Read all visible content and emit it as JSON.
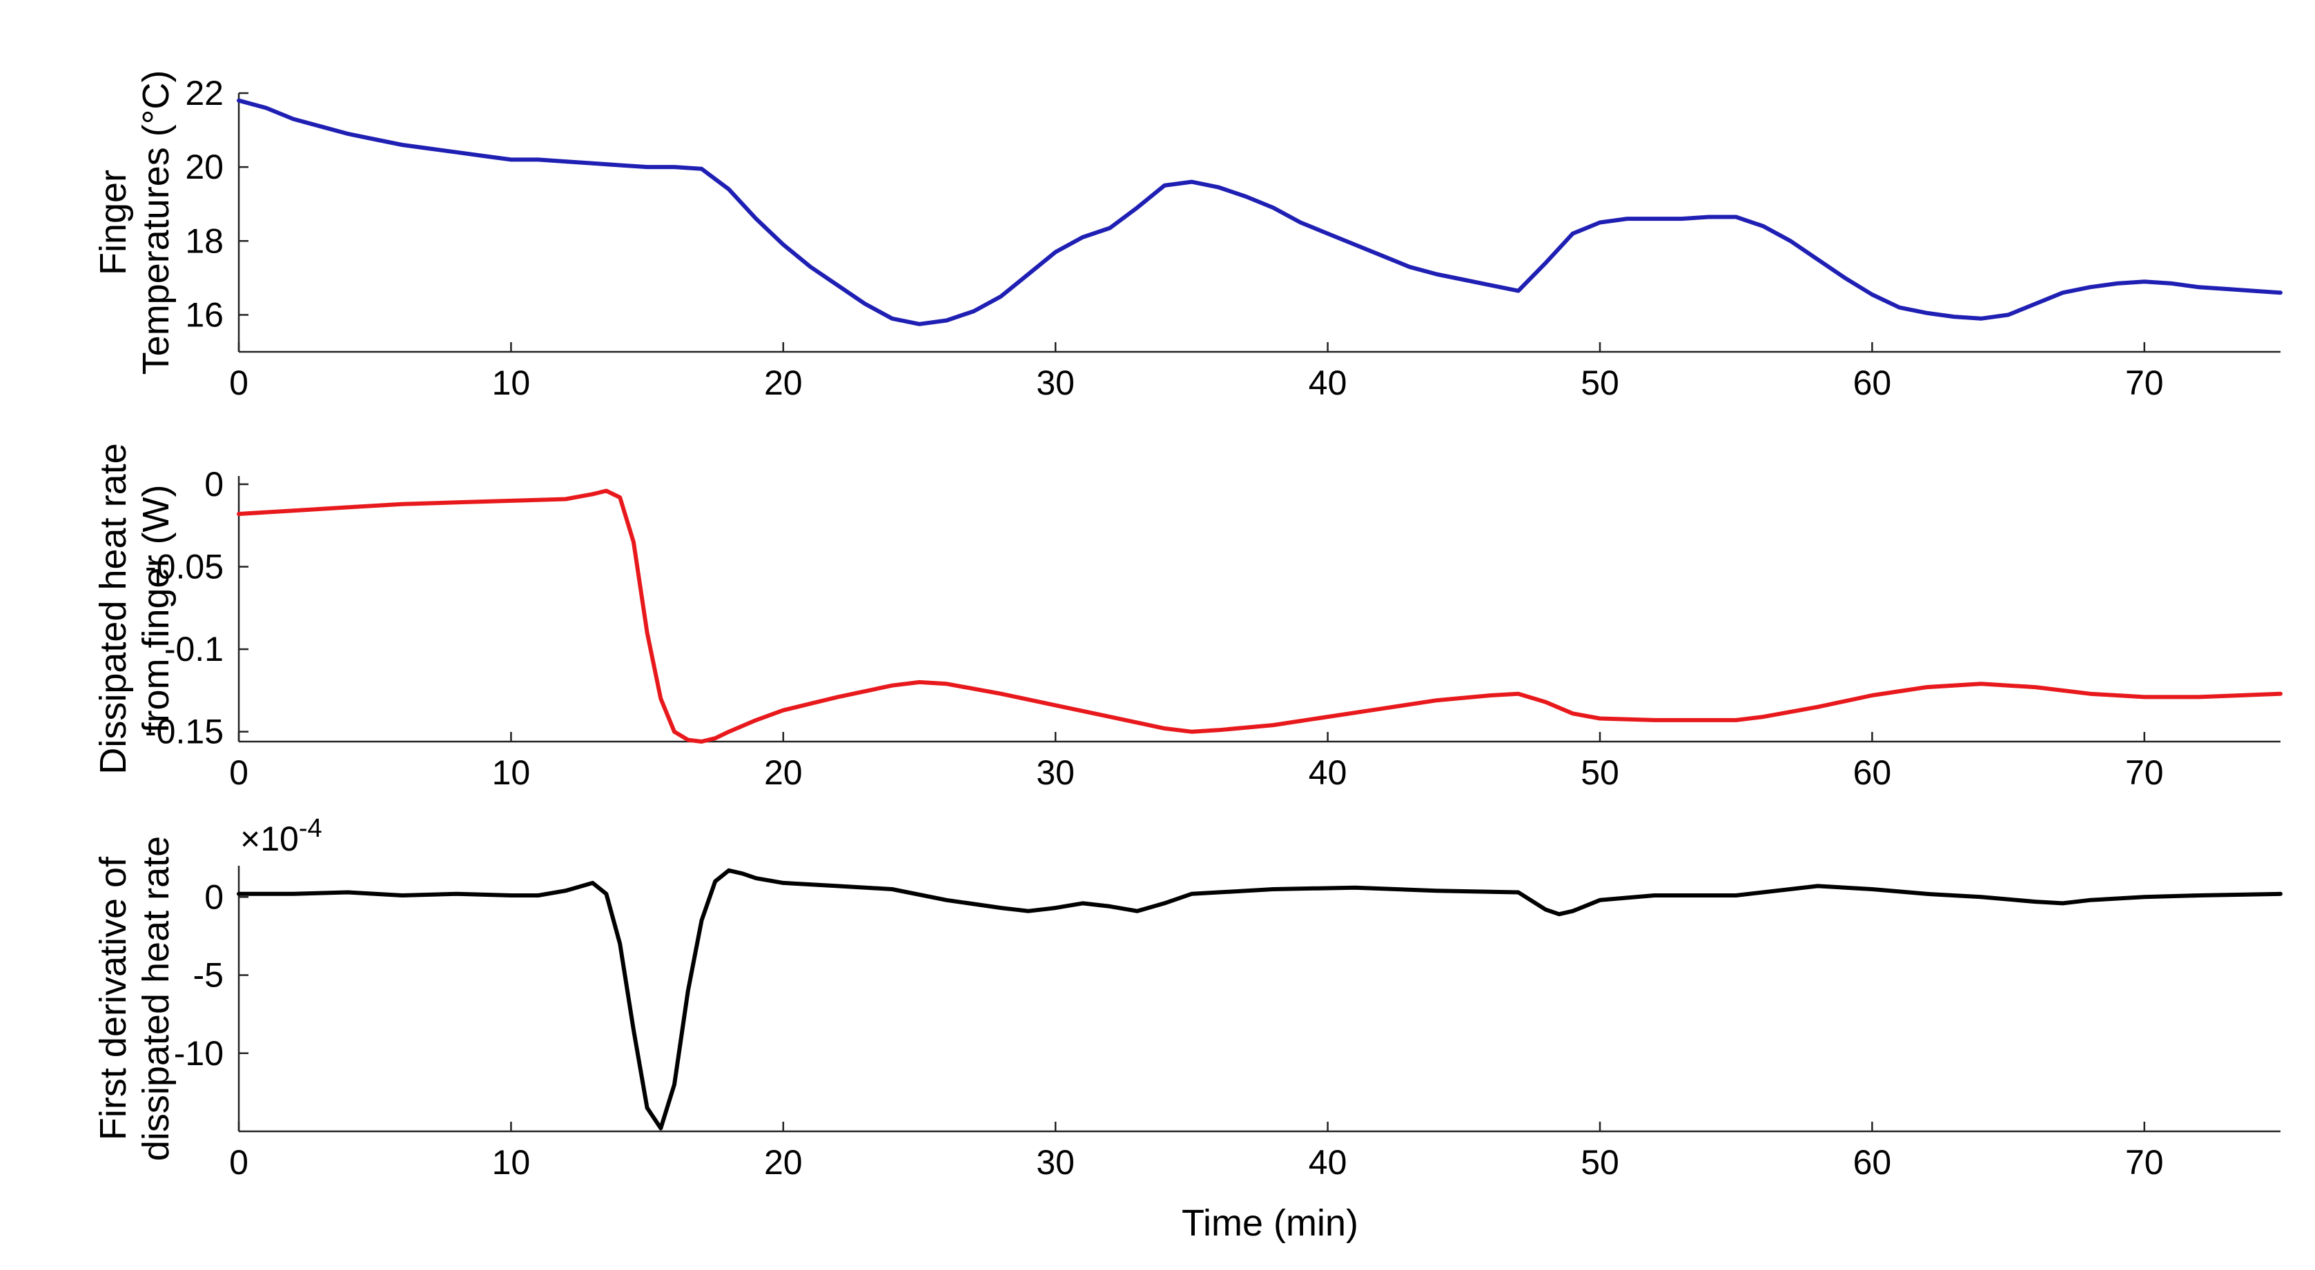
{
  "figure": {
    "xlabel": "Time (min)"
  },
  "chart_data": [
    {
      "type": "line",
      "title": "",
      "xlabel": "",
      "ylabel_lines": [
        "Finger",
        "Temperatures (°C)"
      ],
      "xlim": [
        0,
        75
      ],
      "ylim": [
        15,
        22
      ],
      "xticks": [
        0,
        10,
        20,
        30,
        40,
        50,
        60,
        70
      ],
      "yticks": [
        16,
        18,
        20,
        22
      ],
      "color": "#1f1fb4",
      "series": [
        {
          "name": "Finger temperature",
          "x": [
            0,
            1,
            2,
            3,
            4,
            5,
            6,
            7,
            8,
            9,
            10,
            11,
            12,
            13,
            14,
            15,
            16,
            17,
            18,
            19,
            20,
            21,
            22,
            23,
            24,
            25,
            26,
            27,
            28,
            29,
            30,
            31,
            32,
            33,
            34,
            35,
            36,
            37,
            38,
            39,
            40,
            41,
            42,
            43,
            44,
            45,
            46,
            47,
            48,
            49,
            50,
            51,
            52,
            53,
            54,
            55,
            56,
            57,
            58,
            59,
            60,
            61,
            62,
            63,
            64,
            65,
            66,
            67,
            68,
            69,
            70,
            71,
            72,
            73,
            74,
            75
          ],
          "y": [
            21.8,
            21.6,
            21.3,
            21.1,
            20.9,
            20.75,
            20.6,
            20.5,
            20.4,
            20.3,
            20.2,
            20.2,
            20.15,
            20.1,
            20.05,
            20.0,
            20.0,
            19.95,
            19.4,
            18.6,
            17.9,
            17.3,
            16.8,
            16.3,
            15.9,
            15.75,
            15.85,
            16.1,
            16.5,
            17.1,
            17.7,
            18.1,
            18.35,
            18.9,
            19.5,
            19.6,
            19.45,
            19.2,
            18.9,
            18.5,
            18.2,
            17.9,
            17.6,
            17.3,
            17.1,
            16.95,
            16.8,
            16.65,
            17.4,
            18.2,
            18.5,
            18.6,
            18.6,
            18.6,
            18.65,
            18.65,
            18.4,
            18.0,
            17.5,
            17.0,
            16.55,
            16.2,
            16.05,
            15.95,
            15.9,
            16.0,
            16.3,
            16.6,
            16.75,
            16.85,
            16.9,
            16.85,
            16.75,
            16.7,
            16.65,
            16.6
          ]
        }
      ]
    },
    {
      "type": "line",
      "title": "",
      "xlabel": "",
      "ylabel_lines": [
        "Dissipated heat rate",
        "from finger (W)"
      ],
      "xlim": [
        0,
        75
      ],
      "ylim": [
        -0.156,
        0.005
      ],
      "xticks": [
        0,
        10,
        20,
        30,
        40,
        50,
        60,
        70
      ],
      "yticks": [
        0,
        -0.05,
        -0.1,
        -0.15
      ],
      "color": "#e8191c",
      "series": [
        {
          "name": "Dissipated heat rate",
          "x": [
            0,
            2,
            4,
            6,
            8,
            10,
            12,
            13,
            13.5,
            14,
            14.5,
            15,
            15.5,
            16,
            16.5,
            17,
            17.5,
            18,
            19,
            20,
            22,
            24,
            25,
            26,
            28,
            30,
            32,
            34,
            35,
            36,
            38,
            40,
            42,
            44,
            46,
            47,
            48,
            49,
            50,
            52,
            54,
            55,
            56,
            58,
            60,
            62,
            64,
            66,
            68,
            70,
            72,
            75
          ],
          "y": [
            -0.018,
            -0.016,
            -0.014,
            -0.012,
            -0.011,
            -0.01,
            -0.009,
            -0.006,
            -0.004,
            -0.008,
            -0.035,
            -0.09,
            -0.13,
            -0.15,
            -0.155,
            -0.156,
            -0.154,
            -0.15,
            -0.143,
            -0.137,
            -0.129,
            -0.122,
            -0.12,
            -0.121,
            -0.127,
            -0.134,
            -0.141,
            -0.148,
            -0.15,
            -0.149,
            -0.146,
            -0.141,
            -0.136,
            -0.131,
            -0.128,
            -0.127,
            -0.132,
            -0.139,
            -0.142,
            -0.143,
            -0.143,
            -0.143,
            -0.141,
            -0.135,
            -0.128,
            -0.123,
            -0.121,
            -0.123,
            -0.127,
            -0.129,
            -0.129,
            -0.127
          ]
        }
      ]
    },
    {
      "type": "line",
      "title": "",
      "xlabel": "Time (min)",
      "ylabel_lines": [
        "First derivative of",
        "dissipated heat rate"
      ],
      "xlim": [
        0,
        75
      ],
      "ylim": [
        -15,
        2
      ],
      "xticks": [
        0,
        10,
        20,
        30,
        40,
        50,
        60,
        70
      ],
      "yticks": [
        0,
        -5,
        -10
      ],
      "exponent_label": "×10",
      "exponent_power": "-4",
      "color": "#000000",
      "series": [
        {
          "name": "First derivative",
          "x": [
            0,
            2,
            4,
            6,
            8,
            10,
            11,
            12,
            13,
            13.5,
            14,
            14.5,
            15,
            15.5,
            16,
            16.5,
            17,
            17.5,
            18,
            18.5,
            19,
            20,
            22,
            24,
            26,
            28,
            29,
            30,
            31,
            32,
            33,
            34,
            35,
            38,
            41,
            44,
            47,
            48,
            48.5,
            49,
            50,
            52,
            55,
            58,
            60,
            62,
            64,
            66,
            67,
            68,
            70,
            72,
            75
          ],
          "y": [
            0.2,
            0.2,
            0.3,
            0.1,
            0.2,
            0.1,
            0.1,
            0.4,
            0.9,
            0.2,
            -3,
            -8.5,
            -13.5,
            -14.8,
            -12,
            -6,
            -1.5,
            1,
            1.7,
            1.5,
            1.2,
            0.9,
            0.7,
            0.5,
            -0.2,
            -0.7,
            -0.9,
            -0.7,
            -0.4,
            -0.6,
            -0.9,
            -0.4,
            0.2,
            0.5,
            0.6,
            0.4,
            0.3,
            -0.8,
            -1.1,
            -0.9,
            -0.2,
            0.1,
            0.1,
            0.7,
            0.5,
            0.2,
            0,
            -0.3,
            -0.4,
            -0.2,
            0,
            0.1,
            0.2
          ]
        }
      ]
    }
  ]
}
